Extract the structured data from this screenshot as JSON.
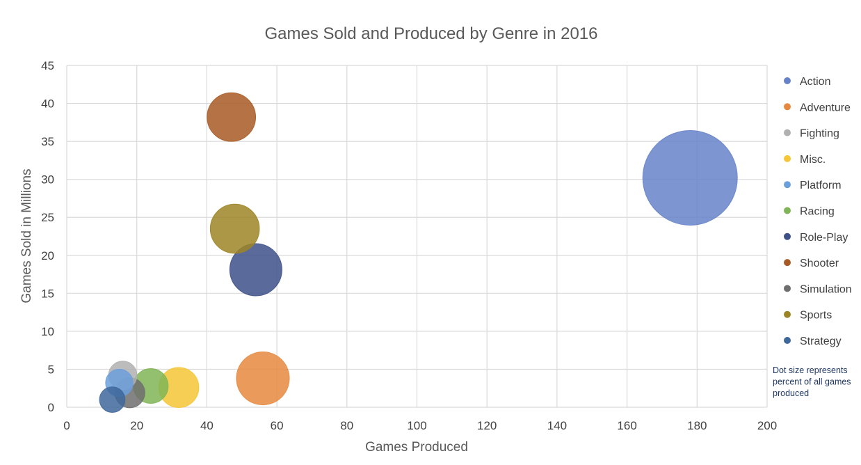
{
  "chart_data": {
    "type": "scatter",
    "subtype": "bubble",
    "title": "Games Sold and Produced by Genre in 2016",
    "xlabel": "Games Produced",
    "ylabel": "Games Sold in Millions",
    "xlim": [
      0,
      200
    ],
    "ylim": [
      0,
      45
    ],
    "x_ticks": [
      0,
      20,
      40,
      60,
      80,
      100,
      120,
      140,
      160,
      180,
      200
    ],
    "y_ticks": [
      0,
      5,
      10,
      15,
      20,
      25,
      30,
      35,
      40,
      45
    ],
    "grid": true,
    "legend_position": "right",
    "note": "Dot size represents percent of all games produced",
    "series": [
      {
        "name": "Action",
        "x": 178,
        "y": 30.2,
        "size": 178,
        "color": "#6683c9"
      },
      {
        "name": "Adventure",
        "x": 56,
        "y": 3.8,
        "size": 56,
        "color": "#e6893f"
      },
      {
        "name": "Fighting",
        "x": 16,
        "y": 4.2,
        "size": 16,
        "color": "#b0b0b0"
      },
      {
        "name": "Misc.",
        "x": 32,
        "y": 2.6,
        "size": 32,
        "color": "#f6c636"
      },
      {
        "name": "Platform",
        "x": 15,
        "y": 3.2,
        "size": 15,
        "color": "#6b9fdb"
      },
      {
        "name": "Racing",
        "x": 24,
        "y": 2.8,
        "size": 24,
        "color": "#7fb556"
      },
      {
        "name": "Role-Play",
        "x": 54,
        "y": 18.1,
        "size": 54,
        "color": "#3d5088"
      },
      {
        "name": "Shooter",
        "x": 47,
        "y": 38.2,
        "size": 47,
        "color": "#a85a24"
      },
      {
        "name": "Simulation",
        "x": 18,
        "y": 1.9,
        "size": 18,
        "color": "#6e6e6e"
      },
      {
        "name": "Sports",
        "x": 48,
        "y": 23.5,
        "size": 48,
        "color": "#9c8524"
      },
      {
        "name": "Strategy",
        "x": 13,
        "y": 1.0,
        "size": 13,
        "color": "#3e679b"
      }
    ]
  }
}
